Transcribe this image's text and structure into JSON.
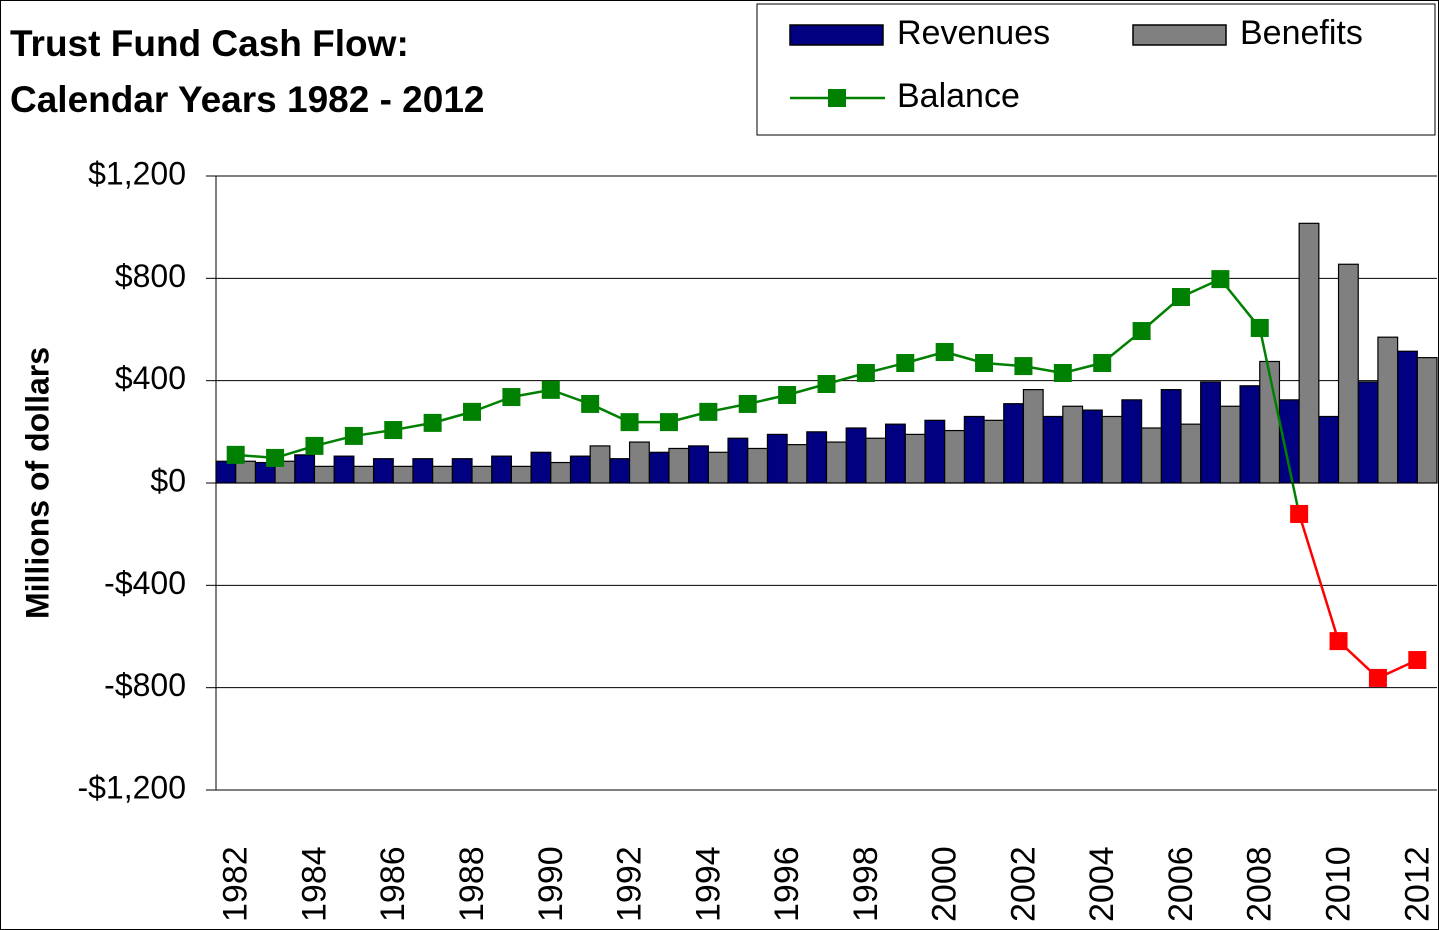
{
  "chart_data": {
    "type": "bar",
    "title": [
      "Trust Fund Cash Flow:",
      "Calendar Years 1982 - 2012"
    ],
    "y_label": "Millions of dollars",
    "categories": [
      "1982",
      null,
      "1984",
      null,
      "1986",
      null,
      "1988",
      null,
      "1990",
      null,
      "1992",
      null,
      "1994",
      null,
      "1996",
      null,
      "1998",
      null,
      "2000",
      null,
      "2002",
      null,
      "2004",
      null,
      "2006",
      null,
      "2008",
      null,
      "2010",
      null,
      "2012"
    ],
    "series": [
      {
        "name": "Revenues",
        "type": "bar",
        "color": "#000080",
        "values": [
          85,
          80,
          110,
          105,
          95,
          95,
          95,
          105,
          120,
          105,
          95,
          120,
          145,
          175,
          190,
          200,
          215,
          230,
          245,
          260,
          310,
          260,
          285,
          325,
          365,
          395,
          380,
          325,
          260,
          395,
          515
        ]
      },
      {
        "name": "Benefits",
        "type": "bar",
        "color": "#808080",
        "values": [
          85,
          85,
          65,
          65,
          65,
          65,
          65,
          65,
          80,
          145,
          160,
          135,
          120,
          135,
          150,
          160,
          175,
          190,
          205,
          245,
          365,
          300,
          260,
          215,
          230,
          300,
          475,
          1015,
          855,
          570,
          490
        ]
      },
      {
        "name": "Balance",
        "type": "line",
        "color": "#008000",
        "negative_color": "#ff0000",
        "values": [
          110,
          98,
          145,
          184,
          207,
          235,
          278,
          336,
          364,
          309,
          238,
          238,
          278,
          309,
          344,
          387,
          430,
          469,
          512,
          469,
          457,
          430,
          469,
          594,
          727,
          797,
          606,
          -121,
          -618,
          -762,
          -692
        ]
      }
    ],
    "ylim": [
      -1200,
      1200
    ],
    "yticks": [
      {
        "value": -1200,
        "label": "-$1,200"
      },
      {
        "value": -800,
        "label": "-$800"
      },
      {
        "value": -400,
        "label": "-$400"
      },
      {
        "value": 0,
        "label": "$0"
      },
      {
        "value": 400,
        "label": "$400"
      },
      {
        "value": 800,
        "label": "$800"
      },
      {
        "value": 1200,
        "label": "$1,200"
      }
    ],
    "grid": true
  }
}
